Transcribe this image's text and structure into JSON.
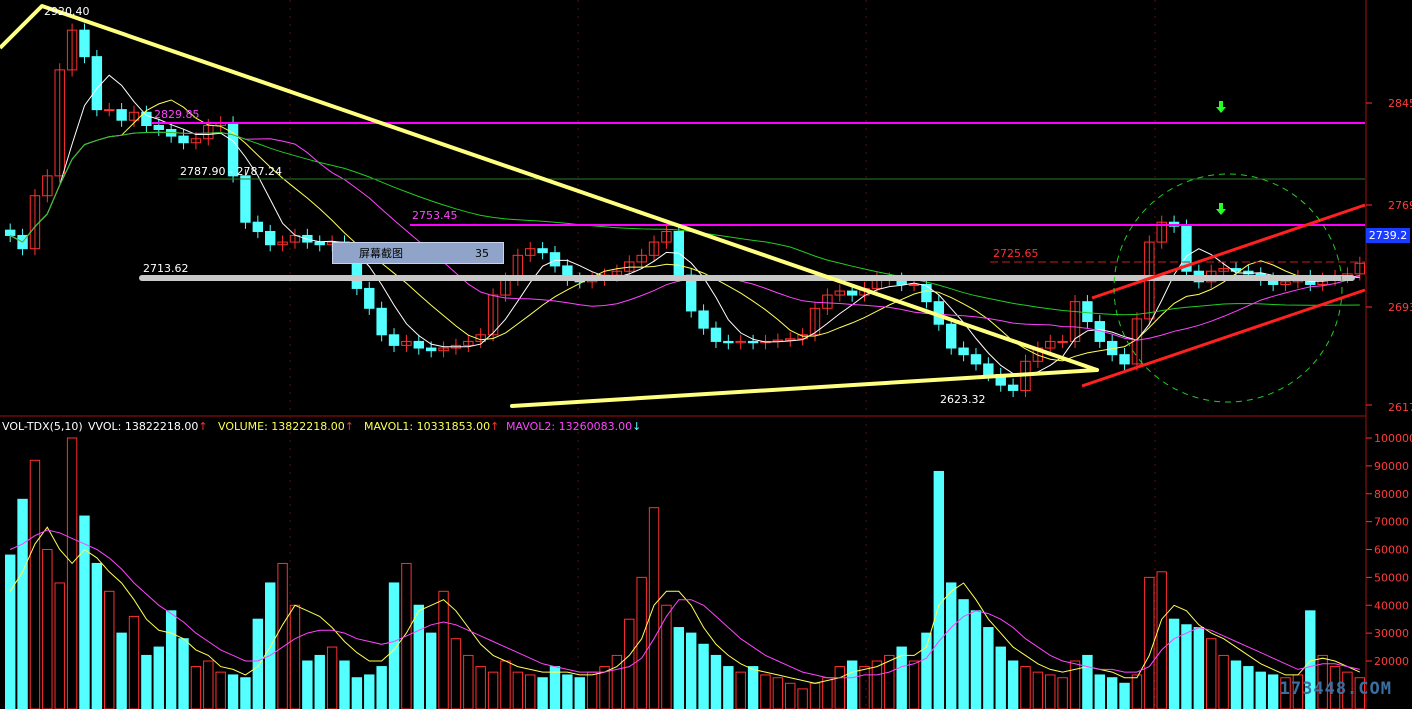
{
  "chart_data": {
    "type": "candlestick",
    "price_panel": {
      "y_ticks": [
        "2845",
        "2769",
        "2693",
        "2617"
      ],
      "current_price": "2739.2",
      "annotations": {
        "high": "2920.40",
        "level_2829": "2829.85",
        "gap": "2787.90 - 2787.24",
        "level_2753": "2753.45",
        "level_2713": "2713.62",
        "level_2725": "2725.65",
        "low": "2623.32"
      },
      "close_series": [
        2745,
        2735,
        2775,
        2790,
        2870,
        2900,
        2880,
        2840,
        2840,
        2832,
        2838,
        2828,
        2825,
        2820,
        2815,
        2818,
        2828,
        2830,
        2790,
        2755,
        2748,
        2738,
        2740,
        2745,
        2740,
        2738,
        2740,
        2735,
        2705,
        2690,
        2670,
        2662,
        2665,
        2660,
        2658,
        2660,
        2662,
        2665,
        2670,
        2700,
        2712,
        2730,
        2735,
        2732,
        2722,
        2712,
        2710,
        2712,
        2715,
        2718,
        2725,
        2730,
        2740,
        2748,
        2715,
        2688,
        2675,
        2665,
        2664,
        2665,
        2664,
        2665,
        2666,
        2667,
        2670,
        2690,
        2700,
        2703,
        2700,
        2705,
        2712,
        2712,
        2708,
        2708,
        2695,
        2678,
        2660,
        2655,
        2648,
        2640,
        2632,
        2628,
        2650,
        2660,
        2665,
        2665,
        2695,
        2680,
        2665,
        2655,
        2648,
        2682,
        2740,
        2755,
        2752,
        2718,
        2710,
        2718,
        2720,
        2718,
        2716,
        2712,
        2708,
        2710,
        2714,
        2708,
        2712,
        2714,
        2716,
        2724
      ]
    },
    "volume_panel": {
      "indicator": "VOL-TDX(5,10)",
      "vvol": "13822218.00",
      "volume": "13822218.00",
      "mavol1": "10331853.00",
      "mavol2": "13260083.00",
      "y_ticks": [
        "100000",
        "90000",
        "80000",
        "70000",
        "60000",
        "50000",
        "40000",
        "30000",
        "20000"
      ],
      "values": [
        58000,
        78000,
        92000,
        60000,
        48000,
        100000,
        72000,
        55000,
        45000,
        30000,
        36000,
        22000,
        25000,
        38000,
        28000,
        18000,
        20000,
        16000,
        15000,
        14000,
        35000,
        48000,
        55000,
        40000,
        20000,
        22000,
        25000,
        20000,
        14000,
        15000,
        18000,
        48000,
        55000,
        40000,
        30000,
        45000,
        28000,
        22000,
        18000,
        16000,
        20000,
        16000,
        15000,
        14000,
        18000,
        15000,
        14000,
        16000,
        18000,
        22000,
        35000,
        50000,
        75000,
        40000,
        32000,
        30000,
        26000,
        22000,
        18000,
        16000,
        18000,
        15000,
        14000,
        12000,
        10000,
        12000,
        14000,
        18000,
        20000,
        18000,
        20000,
        22000,
        25000,
        20000,
        30000,
        88000,
        48000,
        42000,
        38000,
        32000,
        25000,
        20000,
        18000,
        16000,
        15000,
        14000,
        20000,
        22000,
        15000,
        14000,
        12000,
        15000,
        50000,
        52000,
        35000,
        33000,
        32000,
        28000,
        22000,
        20000,
        18000,
        16000,
        15000,
        14000,
        15000,
        38000,
        22000,
        18000,
        16000,
        14000
      ],
      "mavol1_series": [
        45000,
        52000,
        62000,
        68000,
        60000,
        55000,
        60000,
        57000,
        52000,
        48000,
        42000,
        35000,
        31000,
        30000,
        28000,
        24000,
        22000,
        18000,
        17000,
        15000,
        18000,
        25000,
        33000,
        40000,
        38000,
        36000,
        32000,
        27000,
        23000,
        20000,
        20000,
        24000,
        30000,
        38000,
        40000,
        42000,
        38000,
        32000,
        26000,
        22000,
        20000,
        18000,
        17000,
        16000,
        16000,
        16000,
        15000,
        15000,
        16000,
        18000,
        22000,
        28000,
        40000,
        45000,
        45000,
        40000,
        32000,
        26000,
        22000,
        19000,
        17000,
        16000,
        15000,
        14000,
        13000,
        12000,
        13000,
        14000,
        16000,
        17000,
        18000,
        20000,
        22000,
        22000,
        25000,
        40000,
        45000,
        48000,
        42000,
        35000,
        30000,
        25000,
        22000,
        19000,
        17000,
        16000,
        17000,
        18000,
        17000,
        16000,
        14000,
        14000,
        22000,
        35000,
        40000,
        38000,
        33000,
        30000,
        28000,
        25000,
        22000,
        19000,
        17000,
        15000,
        15000,
        20000,
        21000,
        20000,
        18000,
        16000
      ],
      "mavol2_series": [
        60000,
        62000,
        65000,
        67000,
        66000,
        64000,
        62000,
        60000,
        57000,
        53000,
        48000,
        44000,
        40000,
        37000,
        34000,
        30000,
        27000,
        24000,
        22000,
        20000,
        20000,
        22000,
        25000,
        28000,
        30000,
        31000,
        31000,
        30000,
        28000,
        27000,
        26000,
        27000,
        29000,
        31000,
        33000,
        34000,
        33000,
        31000,
        29000,
        27000,
        25000,
        23000,
        21000,
        19000,
        18000,
        17000,
        16000,
        16000,
        16000,
        17000,
        18000,
        21000,
        28000,
        36000,
        42000,
        42000,
        40000,
        36000,
        32000,
        28000,
        25000,
        22000,
        20000,
        18000,
        16000,
        15000,
        14000,
        14000,
        14000,
        15000,
        15000,
        16000,
        18000,
        19000,
        21000,
        27000,
        32000,
        36000,
        38000,
        37000,
        35000,
        32000,
        28000,
        25000,
        22000,
        20000,
        19000,
        18000,
        17000,
        17000,
        16000,
        16000,
        18000,
        24000,
        28000,
        30000,
        32000,
        31000,
        29000,
        27000,
        25000,
        23000,
        21000,
        19000,
        17000,
        18000,
        19000,
        19000,
        18000,
        17000
      ]
    }
  },
  "overlay": {
    "screenshot_label": "屏幕截图",
    "screenshot_number": "35",
    "watermark": "173448.COM"
  },
  "colors": {
    "up": "#ff3030",
    "down": "#54ffff",
    "ma5": "#ffffff",
    "ma10": "#ffff55",
    "ma20": "#ff44ff",
    "ma60": "#22cc22",
    "trendline_yellow": "#ffff80",
    "trendline_red": "#ff2020",
    "magenta_level": "#ff00ff",
    "grey_level": "#c8c8c8"
  }
}
